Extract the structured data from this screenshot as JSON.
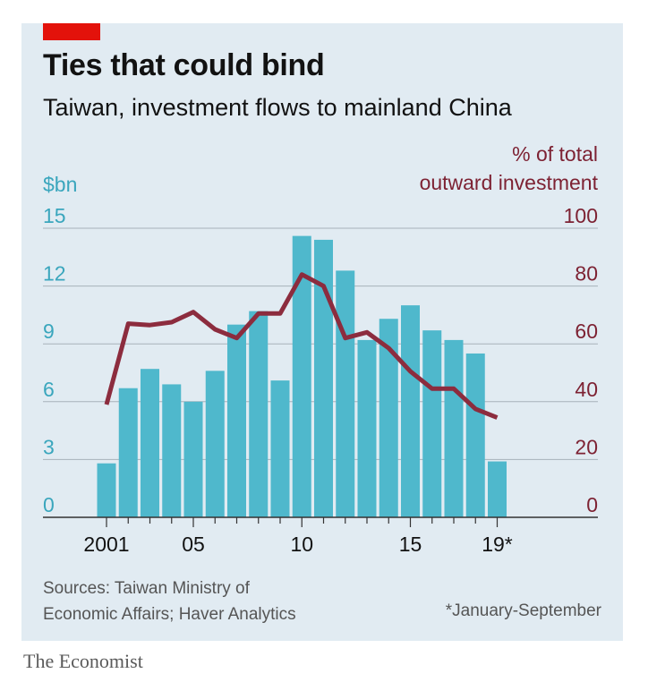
{
  "title": "Ties that could bind",
  "subtitle": "Taiwan, investment flows to mainland China",
  "source": "Sources: Taiwan Ministry of Economic Affairs; Haver Analytics",
  "source_lines": [
    "Sources: Taiwan Ministry of",
    "Economic Affairs; Haver Analytics"
  ],
  "note": "*January-September",
  "brand": "The Economist",
  "colors": {
    "accent": "#e3120b",
    "bars": "#4fb8cc",
    "line": "#8c2c3e",
    "left_axis_text": "#3aa6bd",
    "right_axis_text": "#7d2233",
    "grid": "#a7b2ba",
    "background": "#e1ebf2"
  },
  "chart_data": {
    "type": "bar",
    "x": [
      2001,
      2002,
      2003,
      2004,
      2005,
      2006,
      2007,
      2008,
      2009,
      2010,
      2011,
      2012,
      2013,
      2014,
      2015,
      2016,
      2017,
      2018,
      2019
    ],
    "x_tick_labels": [
      "2001",
      "05",
      "10",
      "15",
      "19*"
    ],
    "x_tick_years": [
      2001,
      2005,
      2010,
      2015,
      2019
    ],
    "series": [
      {
        "name": "$bn",
        "type": "bar",
        "axis": "left",
        "values": [
          2.8,
          6.7,
          7.7,
          6.9,
          6.0,
          7.6,
          10.0,
          10.7,
          7.1,
          14.6,
          14.4,
          12.8,
          9.2,
          10.3,
          11.0,
          9.7,
          9.2,
          8.5,
          2.9
        ]
      },
      {
        "name": "% of total outward investment",
        "type": "line",
        "axis": "right",
        "values": [
          39,
          67,
          66.5,
          67.5,
          71,
          65,
          62,
          70.5,
          70.5,
          84,
          80,
          62,
          64,
          58.5,
          50.5,
          44.5,
          44.5,
          37.5,
          34.5
        ]
      }
    ],
    "y_left": {
      "label": "$bn",
      "ticks": [
        0,
        3,
        6,
        9,
        12,
        15
      ],
      "range": [
        0,
        15
      ]
    },
    "y_right": {
      "label": "% of total outward investment",
      "label_lines": [
        "% of total",
        "outward investment"
      ],
      "ticks": [
        0,
        20,
        40,
        60,
        80,
        100
      ],
      "range": [
        0,
        100
      ]
    },
    "grid": true
  }
}
